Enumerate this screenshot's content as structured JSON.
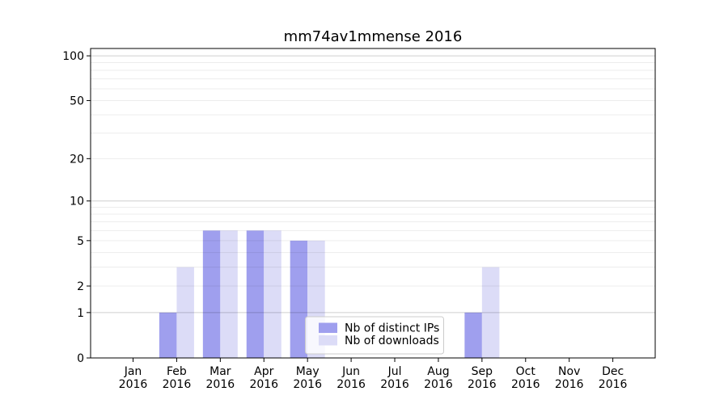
{
  "chart_data": {
    "type": "bar",
    "title": "mm74av1mmense 2016",
    "x_categories": [
      "Jan",
      "Feb",
      "Mar",
      "Apr",
      "May",
      "Jun",
      "Jul",
      "Aug",
      "Sep",
      "Oct",
      "Nov",
      "Dec"
    ],
    "x_year_label": "2016",
    "series": [
      {
        "name": "Nb of distinct IPs",
        "color": "#9f9fee",
        "values": [
          0,
          1,
          6,
          6,
          5,
          0,
          0,
          0,
          1,
          0,
          0,
          0
        ]
      },
      {
        "name": "Nb of downloads",
        "color": "#dcdcf7",
        "values": [
          0,
          3,
          6,
          6,
          5,
          0,
          0,
          0,
          3,
          0,
          0,
          0
        ]
      }
    ],
    "yscale": "log1p",
    "ylim": [
      0,
      112
    ],
    "yticks_labeled": [
      0,
      1,
      2,
      5,
      10,
      20,
      50,
      100
    ],
    "ytick_labels": [
      "0",
      "1",
      "2",
      "5",
      "10",
      "20",
      "50",
      "100"
    ],
    "yticks_major": [
      1,
      10,
      100
    ],
    "yticks_minor": [
      2,
      3,
      4,
      5,
      6,
      7,
      8,
      9,
      20,
      30,
      40,
      50,
      60,
      70,
      80,
      90
    ],
    "grid": "horizontal",
    "colors": {
      "grid_major": "rgba(0,0,0,0.19)",
      "grid_minor": "rgba(0,0,0,0.075)",
      "spine": "#000000",
      "legend_bg": "rgba(255,255,255,0.8)",
      "legend_border": "#cccccc"
    },
    "legend": {
      "position": "lower-center-right-inside"
    }
  }
}
